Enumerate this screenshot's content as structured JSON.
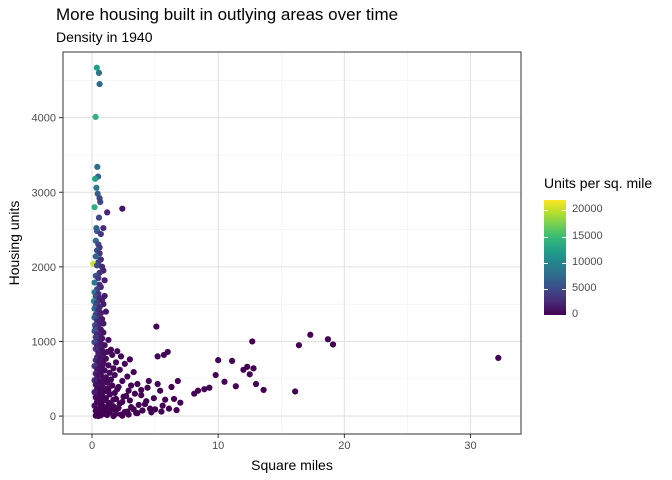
{
  "chart_data": {
    "type": "scatter",
    "title": "More housing built in outlying areas over time",
    "subtitle": "Density in 1940",
    "xlabel": "Square miles",
    "ylabel": "Housing units",
    "xlim": [
      -2.3,
      34.0
    ],
    "ylim": [
      -240,
      4880
    ],
    "x_ticks": [
      0,
      10,
      20,
      30
    ],
    "x_tick_labels": [
      "0",
      "10",
      "20",
      "30"
    ],
    "y_ticks": [
      0,
      1000,
      2000,
      3000,
      4000
    ],
    "y_tick_labels": [
      "0",
      "1000",
      "2000",
      "3000",
      "4000"
    ],
    "grid": true,
    "legend": {
      "title": "Units per sq. mile",
      "placement": "right",
      "type": "colorbar",
      "palette": "viridis",
      "min": 0,
      "max": 22000,
      "ticks": [
        0,
        5000,
        10000,
        15000,
        20000
      ],
      "tick_labels": [
        "0",
        "5000",
        "10000",
        "15000",
        "20000"
      ],
      "colors": [
        "#440154",
        "#482878",
        "#3e4989",
        "#31688e",
        "#26828e",
        "#1f9e89",
        "#35b779",
        "#6ece58",
        "#b5de2b",
        "#fde725"
      ]
    },
    "points": [
      [
        0.38,
        4670
      ],
      [
        0.55,
        4600
      ],
      [
        0.6,
        4450
      ],
      [
        0.28,
        4010
      ],
      [
        0.42,
        3340
      ],
      [
        0.48,
        3210
      ],
      [
        0.25,
        3180
      ],
      [
        0.35,
        3060
      ],
      [
        0.45,
        2980
      ],
      [
        0.6,
        2920
      ],
      [
        0.65,
        2870
      ],
      [
        0.2,
        2800
      ],
      [
        0.55,
        2660
      ],
      [
        1.2,
        2730
      ],
      [
        2.4,
        2780
      ],
      [
        0.35,
        2520
      ],
      [
        0.4,
        2480
      ],
      [
        0.7,
        2440
      ],
      [
        0.9,
        2520
      ],
      [
        0.3,
        2350
      ],
      [
        0.5,
        2300
      ],
      [
        0.6,
        2260
      ],
      [
        0.4,
        2220
      ],
      [
        0.6,
        2180
      ],
      [
        0.3,
        2140
      ],
      [
        0.7,
        2100
      ],
      [
        0.5,
        2060
      ],
      [
        0.1,
        2040
      ],
      [
        0.4,
        2020
      ],
      [
        0.8,
        2000
      ],
      [
        0.9,
        1950
      ],
      [
        0.6,
        1920
      ],
      [
        0.3,
        1880
      ],
      [
        0.5,
        1850
      ],
      [
        1.0,
        1820
      ],
      [
        0.2,
        1790
      ],
      [
        0.6,
        1760
      ],
      [
        0.7,
        1730
      ],
      [
        0.4,
        1700
      ],
      [
        0.2,
        1660
      ],
      [
        0.5,
        1640
      ],
      [
        1.0,
        1610
      ],
      [
        0.3,
        1600
      ],
      [
        0.6,
        1580
      ],
      [
        0.8,
        1550
      ],
      [
        0.15,
        1540
      ],
      [
        0.4,
        1520
      ],
      [
        0.9,
        1500
      ],
      [
        0.3,
        1480
      ],
      [
        0.6,
        1460
      ],
      [
        0.2,
        1440
      ],
      [
        0.5,
        1420
      ],
      [
        1.1,
        1400
      ],
      [
        0.7,
        1380
      ],
      [
        0.3,
        1360
      ],
      [
        0.5,
        1340
      ],
      [
        0.2,
        1320
      ],
      [
        0.8,
        1300
      ],
      [
        0.4,
        1280
      ],
      [
        0.6,
        1260
      ],
      [
        0.9,
        1240
      ],
      [
        0.25,
        1220
      ],
      [
        0.5,
        1200
      ],
      [
        0.3,
        1180
      ],
      [
        0.7,
        1160
      ],
      [
        0.2,
        1140
      ],
      [
        0.9,
        1120
      ],
      [
        0.4,
        1100
      ],
      [
        0.6,
        1080
      ],
      [
        0.3,
        1060
      ],
      [
        0.8,
        1040
      ],
      [
        1.3,
        1020
      ],
      [
        0.5,
        1000
      ],
      [
        0.2,
        990
      ],
      [
        0.7,
        970
      ],
      [
        1.0,
        950
      ],
      [
        0.4,
        940
      ],
      [
        0.6,
        920
      ],
      [
        0.3,
        900
      ],
      [
        1.5,
        890
      ],
      [
        0.8,
        880
      ],
      [
        2.0,
        870
      ],
      [
        1.2,
        860
      ],
      [
        0.5,
        850
      ],
      [
        0.9,
        840
      ],
      [
        1.6,
        820
      ],
      [
        2.3,
        800
      ],
      [
        0.4,
        790
      ],
      [
        0.7,
        780
      ],
      [
        1.1,
        770
      ],
      [
        3.0,
        760
      ],
      [
        0.3,
        750
      ],
      [
        0.6,
        740
      ],
      [
        1.9,
        720
      ],
      [
        0.9,
        710
      ],
      [
        2.6,
        700
      ],
      [
        0.5,
        690
      ],
      [
        1.3,
        680
      ],
      [
        0.2,
        670
      ],
      [
        0.8,
        660
      ],
      [
        1.7,
        640
      ],
      [
        0.4,
        630
      ],
      [
        2.2,
        620
      ],
      [
        1.0,
        610
      ],
      [
        0.6,
        600
      ],
      [
        3.3,
        590
      ],
      [
        1.4,
        580
      ],
      [
        0.3,
        570
      ],
      [
        0.7,
        560
      ],
      [
        1.8,
        550
      ],
      [
        0.5,
        540
      ],
      [
        2.8,
        530
      ],
      [
        1.1,
        520
      ],
      [
        0.4,
        510
      ],
      [
        0.9,
        500
      ],
      [
        1.5,
        490
      ],
      [
        0.2,
        480
      ],
      [
        2.4,
        470
      ],
      [
        0.6,
        460
      ],
      [
        1.2,
        450
      ],
      [
        0.8,
        440
      ],
      [
        3.6,
        430
      ],
      [
        0.3,
        420
      ],
      [
        1.6,
        410
      ],
      [
        0.5,
        400
      ],
      [
        2.1,
        390
      ],
      [
        0.9,
        380
      ],
      [
        1.3,
        370
      ],
      [
        0.4,
        360
      ],
      [
        0.7,
        350
      ],
      [
        2.9,
        340
      ],
      [
        1.0,
        330
      ],
      [
        0.2,
        320
      ],
      [
        1.8,
        310
      ],
      [
        0.6,
        300
      ],
      [
        1.4,
        290
      ],
      [
        3.9,
        280
      ],
      [
        0.8,
        270
      ],
      [
        2.5,
        260
      ],
      [
        0.3,
        250
      ],
      [
        1.1,
        240
      ],
      [
        0.5,
        230
      ],
      [
        1.7,
        220
      ],
      [
        0.9,
        210
      ],
      [
        4.3,
        200
      ],
      [
        0.4,
        190
      ],
      [
        1.3,
        180
      ],
      [
        2.2,
        170
      ],
      [
        0.7,
        160
      ],
      [
        1.5,
        150
      ],
      [
        0.2,
        140
      ],
      [
        0.9,
        130
      ],
      [
        3.1,
        120
      ],
      [
        1.2,
        110
      ],
      [
        0.5,
        100
      ],
      [
        2.0,
        95
      ],
      [
        1.6,
        90
      ],
      [
        0.8,
        80
      ],
      [
        4.0,
        75
      ],
      [
        0.3,
        70
      ],
      [
        1.0,
        60
      ],
      [
        2.6,
        55
      ],
      [
        1.4,
        50
      ],
      [
        0.6,
        45
      ],
      [
        3.5,
        40
      ],
      [
        0.9,
        35
      ],
      [
        1.9,
        30
      ],
      [
        0.4,
        25
      ],
      [
        2.3,
        20
      ],
      [
        1.2,
        15
      ],
      [
        0.7,
        10
      ],
      [
        0.3,
        5
      ],
      [
        1.7,
        0
      ],
      [
        0.5,
        0
      ],
      [
        1.0,
        30
      ],
      [
        2.8,
        60
      ],
      [
        3.3,
        90
      ],
      [
        4.6,
        100
      ],
      [
        5.0,
        90
      ],
      [
        2.1,
        110
      ],
      [
        1.7,
        130
      ],
      [
        3.7,
        150
      ],
      [
        4.2,
        160
      ],
      [
        2.4,
        190
      ],
      [
        3.0,
        210
      ],
      [
        1.9,
        230
      ],
      [
        4.9,
        240
      ],
      [
        2.7,
        270
      ],
      [
        3.4,
        300
      ],
      [
        1.3,
        330
      ],
      [
        2.0,
        360
      ],
      [
        4.4,
        380
      ],
      [
        3.1,
        410
      ],
      [
        5.2,
        430
      ],
      [
        5.1,
        1200
      ],
      [
        5.2,
        800
      ],
      [
        5.7,
        820
      ],
      [
        6.0,
        860
      ],
      [
        5.4,
        340
      ],
      [
        5.8,
        220
      ],
      [
        6.3,
        390
      ],
      [
        6.8,
        470
      ],
      [
        5.6,
        140
      ],
      [
        6.5,
        230
      ],
      [
        7.0,
        180
      ],
      [
        6.1,
        100
      ],
      [
        8.1,
        300
      ],
      [
        8.4,
        340
      ],
      [
        8.9,
        360
      ],
      [
        9.3,
        380
      ],
      [
        9.8,
        550
      ],
      [
        10.0,
        750
      ],
      [
        10.5,
        460
      ],
      [
        11.1,
        740
      ],
      [
        11.4,
        400
      ],
      [
        12.0,
        620
      ],
      [
        12.3,
        660
      ],
      [
        12.5,
        560
      ],
      [
        12.8,
        640
      ],
      [
        12.7,
        1000
      ],
      [
        13.0,
        430
      ],
      [
        13.6,
        350
      ],
      [
        16.1,
        330
      ],
      [
        16.4,
        950
      ],
      [
        17.3,
        1090
      ],
      [
        18.7,
        1030
      ],
      [
        19.1,
        960
      ],
      [
        32.2,
        780
      ],
      [
        2.9,
        20
      ],
      [
        3.6,
        40
      ],
      [
        4.7,
        50
      ],
      [
        5.5,
        60
      ],
      [
        6.7,
        80
      ],
      [
        2.4,
        5
      ],
      [
        1.6,
        110
      ],
      [
        0.9,
        60
      ],
      [
        3.9,
        350
      ],
      [
        4.5,
        470
      ]
    ]
  }
}
